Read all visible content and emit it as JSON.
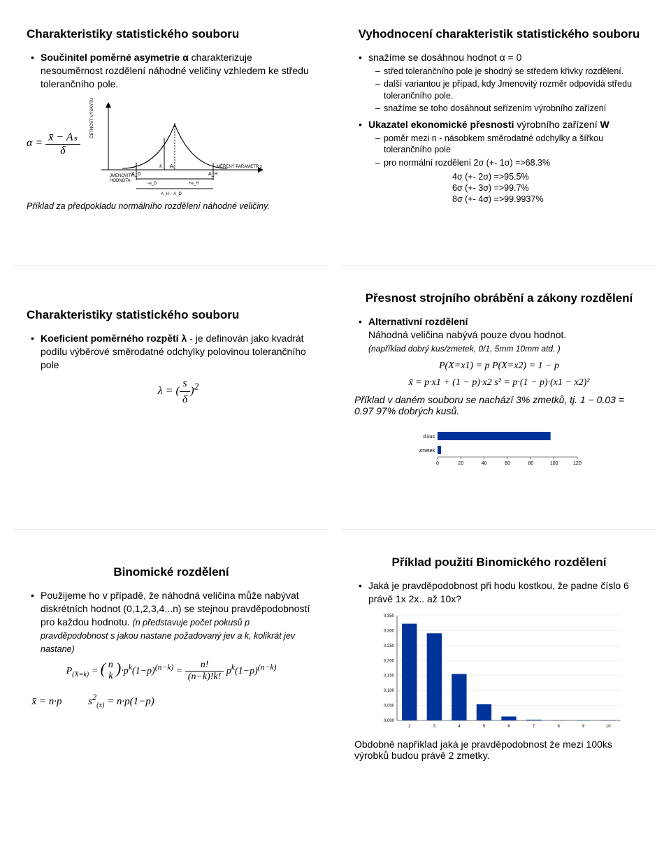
{
  "slides": {
    "s1": {
      "title": "Charakteristiky statistického souboru",
      "bullet1_label": "Součinitel poměrné asymetrie α",
      "bullet1_rest": " charakterizuje nesouměrnost rozdělení náhodné veličiny vzhledem ke středu tolerančního pole.",
      "alpha_lhs": "α =",
      "alpha_num": "x̄ − Aₛ",
      "alpha_den": "δ",
      "footnote": "Příklad za předpokladu normálního rozdělení náhodné veličiny.",
      "bell": {
        "y_label": "ČETNOST VÝSKYTU",
        "x_left_label": "JMENOVITÁ\nHODNOTA",
        "x_right_label": "MĚŘENÝ PARAMETR x",
        "mid_label": "Aₛ",
        "mean_label": "x̄",
        "lo_label": "A_D",
        "hi_label": "A_H",
        "lo_dev": "−e_D",
        "hi_dev": "+e_H",
        "range_label": "A_H − A_D",
        "stroke": "#000000",
        "fill": "#ffffff"
      }
    },
    "s2": {
      "title": "Vyhodnocení charakteristik statistického souboru",
      "b1": "snažíme se dosáhnou hodnot α = 0",
      "b1s1": "střed tolerančního pole je shodný se středem křivky rozdělení.",
      "b1s2": "další variantou je případ, kdy Jmenovitý rozměr odpovídá středu tolerančního pole.",
      "b1s3": "snažíme se toho dosáhnout seřízením výrobního zařízení",
      "b2a": "Ukazatel ekonomické přesnosti",
      "b2b": " výrobního zařízení ",
      "b2c": "W",
      "b2s1": "poměr mezi n - násobkem směrodatné odchylky a šířkou tolerančního pole",
      "b2s2": "pro normální rozdělení 2σ (+- 1σ) =>68.3%",
      "sig_lines": {
        "l2": "4σ (+- 2σ) =>95.5%",
        "l3": "6σ (+- 3σ) =>99.7%",
        "l4": "8σ (+- 4σ) =>99.9937%"
      }
    },
    "s3": {
      "title": "Charakteristiky statistického souboru",
      "b1a": "Koeficient poměrného rozpětí λ",
      "b1b": "  - je definován jako kvadrát podílu výběrové směrodatné odchylky polovinou tolerančního pole",
      "lambda_lhs": "λ = (",
      "lambda_num": "s",
      "lambda_den": "δ",
      "lambda_rhs": ")",
      "lambda_exp": "2"
    },
    "s4": {
      "title": "Přesnost strojního obrábění a zákony rozdělení",
      "b1": "Alternativní rozdělení",
      "b1_text": "Náhodná veličina nabývá pouze dvou hodnot.",
      "b1_note": "(například dobrý kus/zmetek, 0/1, 5mm 10mm atd. )",
      "p_formula": "P(X=x1) = p     P(X=x2) = 1 − p",
      "mean_formula": "x̄ = p·x1 + (1 − p)·x2    s² = p·(1 − p)·(x1 − x2)²",
      "example": "Příklad v daném souboru se nachází 3% zmetků, tj. 1 − 0.03 = 0.97 97% dobrých kusů.",
      "barchart": {
        "labels": [
          "d.kus",
          "zmetek"
        ],
        "values": [
          97,
          3
        ],
        "xmax": 120,
        "xtick_step": 20,
        "xticks": [
          "0",
          "20",
          "40",
          "60",
          "80",
          "100",
          "120"
        ],
        "bar_color": "#003399",
        "bg": "#ffffff",
        "axis_color": "#000000",
        "text_color": "#000000"
      }
    },
    "s5": {
      "title": "Binomické rozdělení",
      "b1": "Použijeme ho v případě, že náhodná veličina může nabývat diskrétních hodnot (0,1,2,3,4...n) se stejnou pravděpodobností pro každou hodnotu. ",
      "b1_note": "(n představuje počet pokusů p pravděpodobnost s jakou nastane požadovaný jev a k, kolikrát jev nastane)",
      "formula_main": "P(X=k) = (n choose k)·pᵏ(1−p)⁽ⁿ⁻ᵏ⁾ = n! / ((n−k)!k!) · pᵏ(1−p)⁽ⁿ⁻ᵏ⁾",
      "formula_mv": "x̄ = n·p         s²₍ₓ₎ = n·p(1−p)"
    },
    "s6": {
      "title": "Příklad použití Binomického rozdělení",
      "b1": "Jaká je pravděpodobnost při hodu kostkou, že padne číslo 6 právě 1x 2x.. až 10x?",
      "end": "Obdobně například jaká je pravděpodobnost že mezi 100ks výrobků budou právě 2 zmetky.",
      "chart": {
        "x": [
          2,
          3,
          4,
          5,
          6,
          7,
          8,
          9,
          10
        ],
        "y": [
          0.323,
          0.291,
          0.155,
          0.054,
          0.013,
          0.0025,
          0.0003,
          3e-05,
          2e-06
        ],
        "ymax": 0.35,
        "ytick_step": 0.05,
        "yticks": [
          "0,000",
          "0,050",
          "0,100",
          "0,150",
          "0,200",
          "0,250",
          "0,300",
          "0,350"
        ],
        "xticks": [
          "2",
          "3",
          "4",
          "5",
          "6",
          "7",
          "8",
          "9",
          "10"
        ],
        "bar_color": "#003399",
        "grid_color": "#e0e0e0",
        "axis_color": "#000000",
        "bg": "#ffffff"
      }
    }
  }
}
